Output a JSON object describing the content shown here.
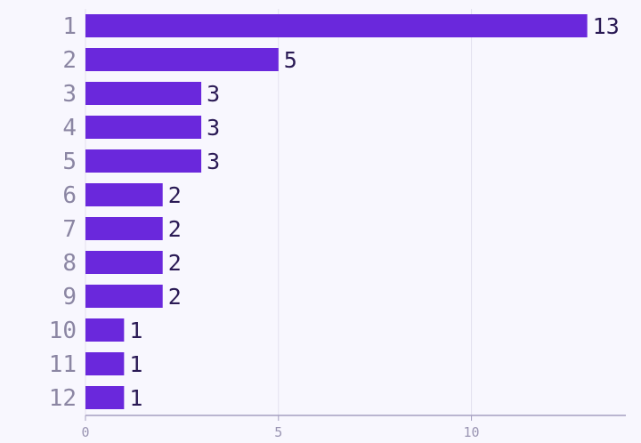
{
  "chart_data": {
    "type": "bar",
    "orientation": "horizontal",
    "categories": [
      "1",
      "2",
      "3",
      "4",
      "5",
      "6",
      "7",
      "8",
      "9",
      "10",
      "11",
      "12"
    ],
    "values": [
      13,
      5,
      3,
      3,
      3,
      2,
      2,
      2,
      2,
      1,
      1,
      1
    ],
    "data_labels": [
      "13",
      "5",
      "3",
      "3",
      "3",
      "2",
      "2",
      "2",
      "2",
      "1",
      "1",
      "1"
    ],
    "x_ticks": [
      "0",
      "5",
      "10"
    ],
    "xlim": [
      0,
      14
    ],
    "title": "",
    "xlabel": "",
    "ylabel": "",
    "grid": true,
    "bar_color": "#6a28dc",
    "background_color": "#f8f7fe"
  }
}
